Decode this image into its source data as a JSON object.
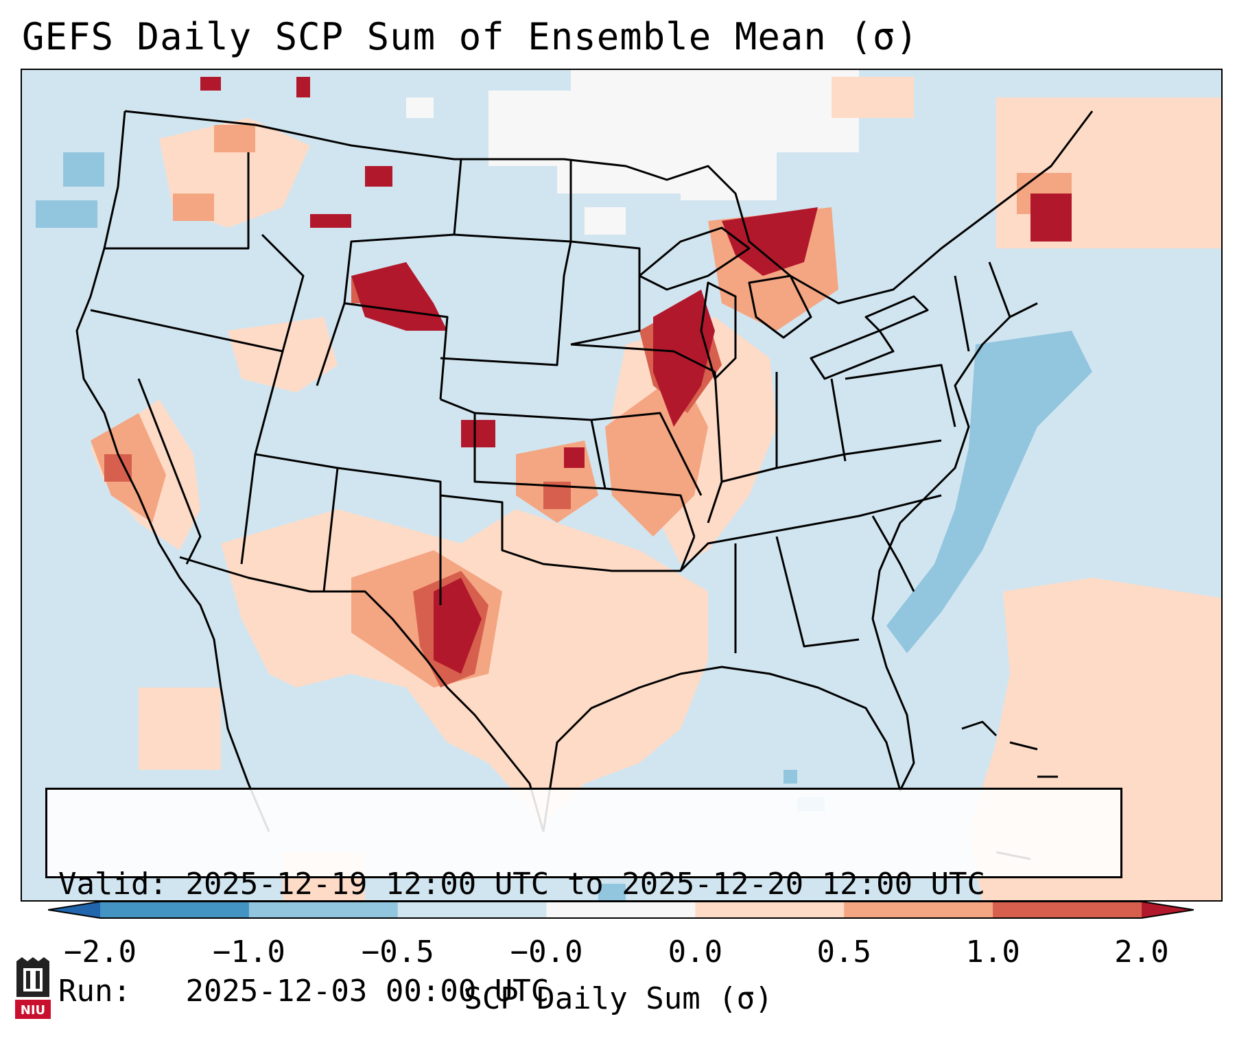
{
  "title": "GEFS Daily SCP Sum of Ensemble Mean (σ)",
  "map": {
    "projection": "lambert-conformal CONUS",
    "background_color": "#d1e5f0",
    "border_color": "#000000"
  },
  "info": {
    "valid_label": "Valid:",
    "valid_value": "2025-12-19 12:00 UTC to 2025-12-20 12:00 UTC",
    "run_label": "Run:",
    "run_value": "2025-12-03 00:00 UTC"
  },
  "colorbar": {
    "label": "SCP Daily Sum (σ)",
    "ticks": [
      "−2.0",
      "−1.0",
      "−0.5",
      "−0.0",
      "0.0",
      "0.5",
      "1.0",
      "2.0"
    ],
    "bins": [
      {
        "range": [
          -2.0,
          -1.0
        ],
        "color": "#4393c3"
      },
      {
        "range": [
          -1.0,
          -0.5
        ],
        "color": "#92c5de"
      },
      {
        "range": [
          -0.5,
          -0.0
        ],
        "color": "#d1e5f0"
      },
      {
        "range": [
          -0.0,
          0.0
        ],
        "color": "#f7f7f7"
      },
      {
        "range": [
          0.0,
          0.5
        ],
        "color": "#fddbc7"
      },
      {
        "range": [
          0.5,
          1.0
        ],
        "color": "#f4a582"
      },
      {
        "range": [
          1.0,
          2.0
        ],
        "color": "#d6604d"
      }
    ],
    "extend_low_color": "#2166ac",
    "extend_high_color": "#b2182b"
  },
  "logo": {
    "text": "NIU",
    "name": "Northern Illinois University"
  }
}
